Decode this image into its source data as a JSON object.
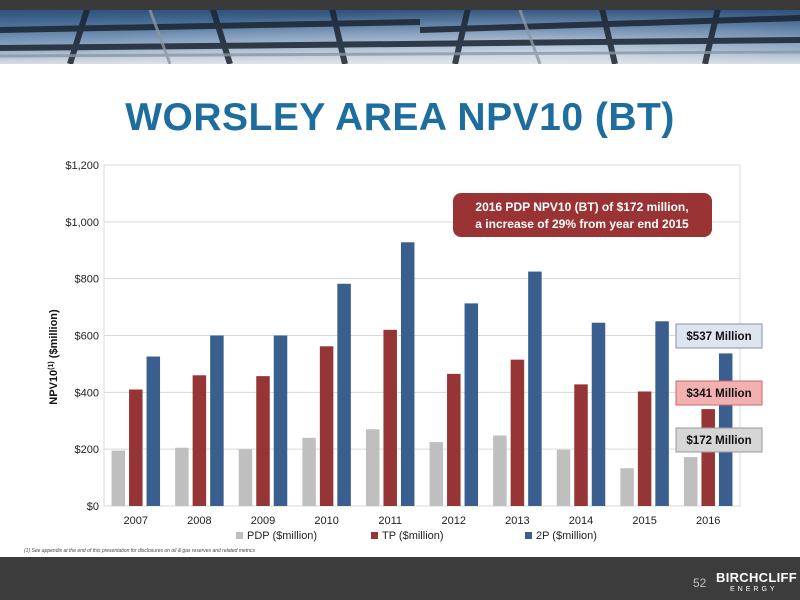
{
  "title": "WORSLEY AREA NPV10 (BT)",
  "footnote": "(1) See appendix at the end of this presentation for disclosures on oil & gas reserves and related metrics",
  "page_number": "52",
  "logo": {
    "name": "BIRCHCLIFF",
    "sub": "ENERGY"
  },
  "colors": {
    "title": "#1d6e9e",
    "pdp": "#bfbfbf",
    "tp": "#953535",
    "p2": "#3a5f8f",
    "callout": "#9a3434"
  },
  "chart_data": {
    "type": "bar",
    "categories": [
      "2007",
      "2008",
      "2009",
      "2010",
      "2011",
      "2012",
      "2013",
      "2014",
      "2015",
      "2016"
    ],
    "series": [
      {
        "name": "PDP ($million)",
        "color": "#bfbfbf",
        "values": [
          195,
          205,
          200,
          240,
          270,
          225,
          248,
          198,
          133,
          172
        ]
      },
      {
        "name": "TP ($million)",
        "color": "#953535",
        "values": [
          410,
          460,
          457,
          562,
          620,
          465,
          515,
          428,
          403,
          341
        ]
      },
      {
        "name": "2P ($million)",
        "color": "#3a5f8f",
        "values": [
          526,
          600,
          600,
          782,
          928,
          713,
          825,
          645,
          650,
          537
        ]
      }
    ],
    "ylim": [
      0,
      1200
    ],
    "yticks": [
      0,
      200,
      400,
      600,
      800,
      1000,
      1200
    ],
    "ytick_labels": [
      "$0",
      "$200",
      "$400",
      "$600",
      "$800",
      "$1,000",
      "$1,200"
    ],
    "ylabel_main": "NPV10",
    "ylabel_sup": "(1)",
    "ylabel_unit": " ($million)",
    "xlabel": "",
    "grid": true,
    "legend_position": "bottom",
    "callout": {
      "line1": "2016 PDP NPV10 (BT) of $172 million,",
      "line2": "a increase of 29% from year end 2015"
    },
    "value_labels": [
      {
        "text": "$537 Million",
        "series": "2P ($million)"
      },
      {
        "text": "$341 Million",
        "series": "TP ($million)"
      },
      {
        "text": "$172 Million",
        "series": "PDP ($million)"
      }
    ]
  }
}
